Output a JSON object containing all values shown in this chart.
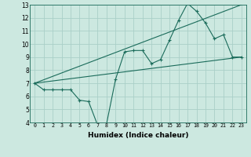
{
  "title": "",
  "xlabel": "Humidex (Indice chaleur)",
  "ylabel": "",
  "background_color": "#cce8e0",
  "grid_color": "#aacfc8",
  "line_color": "#1a6b5a",
  "xlim": [
    -0.5,
    23.5
  ],
  "ylim": [
    4,
    13
  ],
  "xticks": [
    0,
    1,
    2,
    3,
    4,
    5,
    6,
    7,
    8,
    9,
    10,
    11,
    12,
    13,
    14,
    15,
    16,
    17,
    18,
    19,
    20,
    21,
    22,
    23
  ],
  "yticks": [
    4,
    5,
    6,
    7,
    8,
    9,
    10,
    11,
    12,
    13
  ],
  "line1_x": [
    0,
    1,
    2,
    3,
    4,
    5,
    6,
    7,
    8,
    9,
    10,
    11,
    12,
    13,
    14,
    15,
    16,
    17,
    18,
    19,
    20,
    21,
    22,
    23
  ],
  "line1_y": [
    7.0,
    6.5,
    6.5,
    6.5,
    6.5,
    5.7,
    5.6,
    3.8,
    3.9,
    7.3,
    9.4,
    9.5,
    9.5,
    8.5,
    8.8,
    10.3,
    11.8,
    13.1,
    12.5,
    11.6,
    10.4,
    10.7,
    9.0,
    9.0
  ],
  "line2_x": [
    0,
    23
  ],
  "line2_y": [
    7.0,
    9.0
  ],
  "line3_x": [
    0,
    23
  ],
  "line3_y": [
    7.0,
    13.0
  ]
}
